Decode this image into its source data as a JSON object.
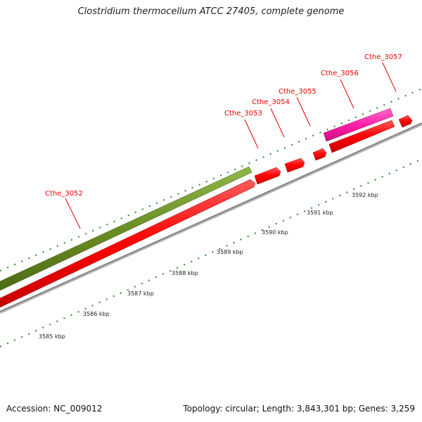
{
  "title": "Clostridium thermocellum ATCC 27405, complete genome",
  "footer": {
    "accession": "Accession: NC_009012",
    "summary": "Topology: circular; Length: 3,843,301 bp; Genes: 3,259"
  },
  "colors": {
    "backbone": "#888888",
    "cds_red": "#ff0000",
    "gene_olive": "#6b8e23",
    "gene_pink": "#ff1fa8",
    "label_red": "#e60000",
    "tick_green": "#2e8b2e"
  },
  "kbp_labels": [
    "3585 kbp",
    "3586 kbp",
    "3587 kbp",
    "3588 kbp",
    "3589 kbp",
    "3590 kbp",
    "3591 kbp",
    "3592 kbp"
  ],
  "gene_labels": [
    "Cthe_3052",
    "Cthe_3053",
    "Cthe_3054",
    "Cthe_3055",
    "Cthe_3056",
    "Cthe_3057"
  ]
}
